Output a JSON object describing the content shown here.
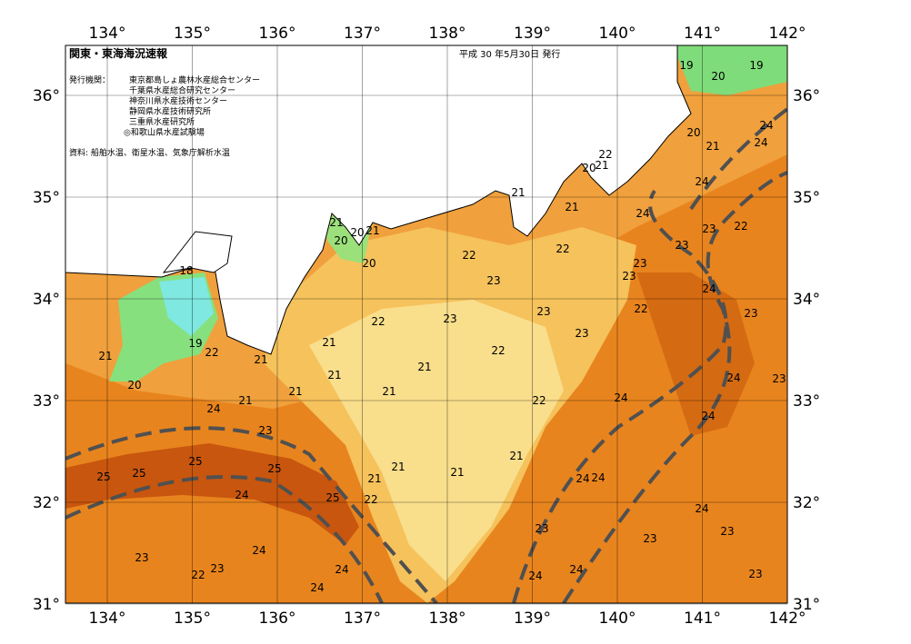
{
  "header": {
    "title": "関東・東海海況速報",
    "date": "平成 30 年5月30日 発行",
    "issuer_label": "発行機関：",
    "issuers": [
      "東京都島しょ農林水産総合センター",
      "千葉県水産総合研究センター",
      "神奈川県水産技術センター",
      "静岡県水産技術研究所",
      "三重県水産研究所",
      "◎和歌山県水産試験場"
    ],
    "source": "資料: 船舶水温、衛星水温、気象庁解析水温"
  },
  "map": {
    "longitudes": [
      "134°",
      "135°",
      "136°",
      "137°",
      "138°",
      "139°",
      "140°",
      "141°",
      "142°"
    ],
    "latitudes": [
      "36°",
      "35°",
      "34°",
      "33°",
      "32°",
      "31°"
    ],
    "contour_labels": [
      "19",
      "19",
      "20",
      "20",
      "21",
      "24",
      "24",
      "22",
      "20",
      "21",
      "24",
      "21",
      "21",
      "24",
      "23",
      "22",
      "21",
      "20",
      "21",
      "20",
      "20",
      "22",
      "22",
      "23",
      "23",
      "23",
      "23",
      "18",
      "24",
      "22",
      "23",
      "23",
      "22",
      "23",
      "23",
      "21",
      "22",
      "19",
      "22",
      "21",
      "21",
      "21",
      "21",
      "24",
      "23",
      "20",
      "21",
      "21",
      "21",
      "22",
      "24",
      "24",
      "24",
      "23",
      "21",
      "25",
      "25",
      "21",
      "21",
      "25",
      "25",
      "21",
      "24",
      "24",
      "24",
      "25",
      "22",
      "24",
      "23",
      "23",
      "23",
      "24",
      "23",
      "23",
      "22",
      "24",
      "24",
      "24",
      "23",
      "24"
    ]
  }
}
